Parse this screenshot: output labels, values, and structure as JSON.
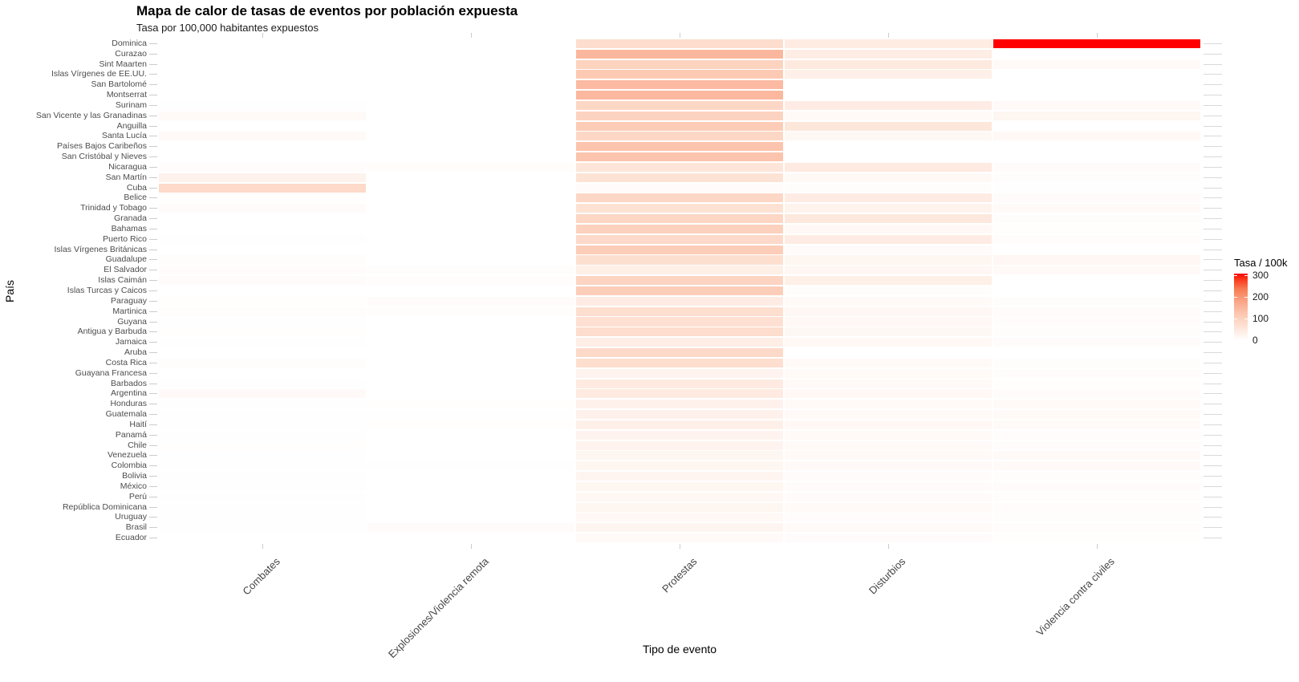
{
  "title": "Mapa de calor de tasas de eventos por población expuesta",
  "subtitle": "Tasa por 100,000 habitantes expuestos",
  "axes": {
    "x_title": "Tipo de evento",
    "y_title": "País"
  },
  "legend": {
    "title": "Tasa / 100k",
    "tick_labels": [
      "300",
      "200",
      "100",
      "0"
    ],
    "tick_values": [
      300,
      200,
      100,
      0
    ],
    "scale_max": 310,
    "color_low": "#FFFFFF",
    "color_high": "#FF0000"
  },
  "chart_data": {
    "type": "heatmap",
    "title": "Mapa de calor de tasas de eventos por población expuesta",
    "subtitle": "Tasa por 100,000 habitantes expuestos",
    "xlabel": "Tipo de evento",
    "ylabel": "País",
    "legend_title": "Tasa / 100k",
    "scale": {
      "min": 0,
      "max": 310,
      "low_color": "#FFFFFF",
      "high_color": "#FF0000"
    },
    "x_categories": [
      "Combates",
      "Explosiones/Violencia remota",
      "Protestas",
      "Disturbios",
      "Violencia contra civiles"
    ],
    "y_categories": [
      "Dominica",
      "Curazao",
      "Sint Maarten",
      "Islas Vírgenes de EE.UU.",
      "San Bartolomé",
      "Montserrat",
      "Surinam",
      "San Vicente y las Granadinas",
      "Anguilla",
      "Santa Lucía",
      "Países Bajos Caribeños",
      "San Cristóbal y Nieves",
      "Nicaragua",
      "San Martín",
      "Cuba",
      "Belice",
      "Trinidad y Tobago",
      "Granada",
      "Bahamas",
      "Puerto Rico",
      "Islas Vírgenes Británicas",
      "Guadalupe",
      "El Salvador",
      "Islas Caimán",
      "Islas Turcas y Caicos",
      "Paraguay",
      "Martinica",
      "Guyana",
      "Antigua y Barbuda",
      "Jamaica",
      "Aruba",
      "Costa Rica",
      "Guayana Francesa",
      "Barbados",
      "Argentina",
      "Honduras",
      "Guatemala",
      "Haití",
      "Panamá",
      "Chile",
      "Venezuela",
      "Colombia",
      "Bolivia",
      "México",
      "Perú",
      "República Dominicana",
      "Uruguay",
      "Brasil",
      "Ecuador"
    ],
    "values": [
      [
        0,
        0,
        75,
        42,
        310
      ],
      [
        0,
        0,
        150,
        38,
        0
      ],
      [
        0,
        0,
        98,
        48,
        12
      ],
      [
        0,
        0,
        118,
        33,
        0
      ],
      [
        0,
        0,
        145,
        0,
        0
      ],
      [
        0,
        0,
        148,
        0,
        0
      ],
      [
        2,
        0,
        88,
        40,
        10
      ],
      [
        12,
        0,
        96,
        12,
        20
      ],
      [
        0,
        0,
        112,
        52,
        0
      ],
      [
        10,
        0,
        88,
        16,
        15
      ],
      [
        0,
        0,
        128,
        0,
        0
      ],
      [
        0,
        0,
        128,
        0,
        0
      ],
      [
        6,
        7,
        55,
        44,
        8
      ],
      [
        28,
        0,
        60,
        13,
        5
      ],
      [
        80,
        0,
        8,
        4,
        2
      ],
      [
        3,
        0,
        88,
        40,
        8
      ],
      [
        8,
        0,
        63,
        26,
        10
      ],
      [
        0,
        0,
        90,
        50,
        4
      ],
      [
        0,
        0,
        102,
        15,
        3
      ],
      [
        2,
        0,
        82,
        40,
        6
      ],
      [
        0,
        0,
        110,
        8,
        0
      ],
      [
        4,
        0,
        70,
        20,
        18
      ],
      [
        6,
        4,
        35,
        18,
        10
      ],
      [
        8,
        6,
        95,
        35,
        0
      ],
      [
        0,
        0,
        108,
        5,
        0
      ],
      [
        3,
        8,
        40,
        12,
        5
      ],
      [
        5,
        5,
        72,
        18,
        8
      ],
      [
        2,
        0,
        68,
        15,
        6
      ],
      [
        3,
        0,
        73,
        16,
        4
      ],
      [
        2,
        0,
        37,
        14,
        8
      ],
      [
        0,
        0,
        82,
        0,
        0
      ],
      [
        4,
        0,
        71,
        10,
        5
      ],
      [
        0,
        0,
        25,
        12,
        6
      ],
      [
        2,
        0,
        45,
        12,
        3
      ],
      [
        10,
        0,
        45,
        15,
        8
      ],
      [
        2,
        3,
        30,
        12,
        10
      ],
      [
        2,
        2,
        30,
        12,
        10
      ],
      [
        2,
        3,
        32,
        14,
        12
      ],
      [
        2,
        0,
        25,
        10,
        6
      ],
      [
        3,
        0,
        25,
        10,
        6
      ],
      [
        2,
        0,
        20,
        10,
        10
      ],
      [
        2,
        2,
        20,
        10,
        10
      ],
      [
        2,
        0,
        22,
        8,
        4
      ],
      [
        2,
        0,
        20,
        8,
        8
      ],
      [
        2,
        0,
        18,
        8,
        5
      ],
      [
        2,
        0,
        20,
        10,
        6
      ],
      [
        2,
        0,
        15,
        6,
        4
      ],
      [
        2,
        8,
        22,
        10,
        6
      ],
      [
        0,
        0,
        10,
        8,
        3
      ]
    ]
  }
}
